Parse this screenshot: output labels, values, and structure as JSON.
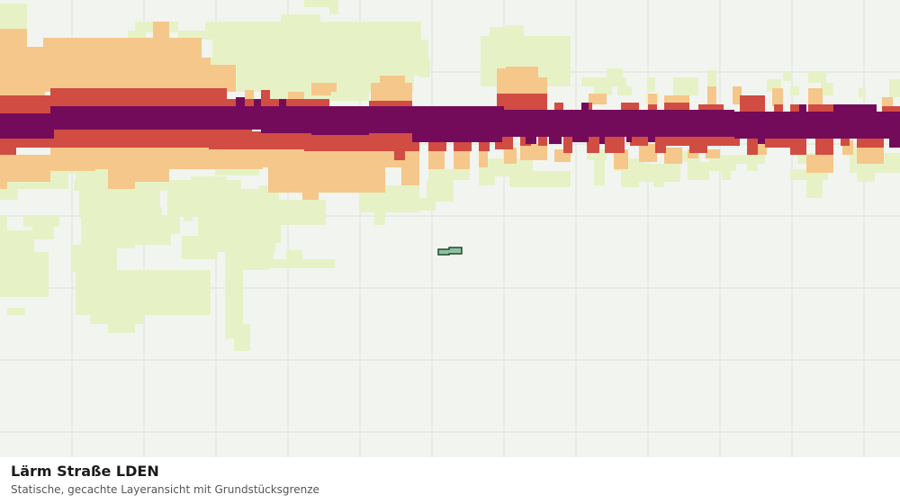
{
  "map": {
    "layer_title": "Lärm Straße LDEN",
    "subtitle": "Statische, gecachte Layeransicht mit Grundstücksgrenze",
    "colors": {
      "background": "#f2f4f0",
      "grid": "#dde0dc",
      "band_lightgreen": "#e6f2c6",
      "band_peach": "#f5c78a",
      "band_red": "#d14c43",
      "band_purple": "#740b5a",
      "parcel_fill": "#8fc1a0",
      "parcel_stroke": "#1e4a2c"
    }
  }
}
